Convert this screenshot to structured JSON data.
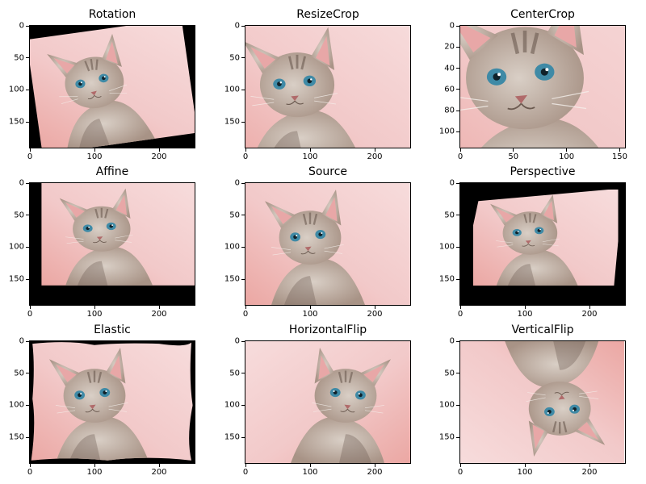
{
  "figure": {
    "description_type": "image-grid",
    "panels": [
      {
        "id": "rotation",
        "title": "Rotation",
        "img_w": 255,
        "img_h": 190,
        "xticks": [
          "0",
          "100",
          "200"
        ],
        "xtick_vals": [
          0,
          100,
          200
        ],
        "yticks": [
          "0",
          "50",
          "100",
          "150"
        ],
        "ytick_vals": [
          0,
          50,
          100,
          150
        ],
        "transform": "rotation"
      },
      {
        "id": "resizecrop",
        "title": "ResizeCrop",
        "img_w": 255,
        "img_h": 190,
        "xticks": [
          "0",
          "100",
          "200"
        ],
        "xtick_vals": [
          0,
          100,
          200
        ],
        "yticks": [
          "0",
          "50",
          "100",
          "150"
        ],
        "ytick_vals": [
          0,
          50,
          100,
          150
        ],
        "transform": "resizecrop"
      },
      {
        "id": "centercrop",
        "title": "CenterCrop",
        "img_w": 155,
        "img_h": 115,
        "xticks": [
          "0",
          "50",
          "100",
          "150"
        ],
        "xtick_vals": [
          0,
          50,
          100,
          150
        ],
        "yticks": [
          "0",
          "20",
          "40",
          "60",
          "80",
          "100"
        ],
        "ytick_vals": [
          0,
          20,
          40,
          60,
          80,
          100
        ],
        "transform": "centercrop"
      },
      {
        "id": "affine",
        "title": "Affine",
        "img_w": 255,
        "img_h": 190,
        "xticks": [
          "0",
          "100",
          "200"
        ],
        "xtick_vals": [
          0,
          100,
          200
        ],
        "yticks": [
          "0",
          "50",
          "100",
          "150"
        ],
        "ytick_vals": [
          0,
          50,
          100,
          150
        ],
        "transform": "affine"
      },
      {
        "id": "source",
        "title": "Source",
        "img_w": 255,
        "img_h": 190,
        "xticks": [
          "0",
          "100",
          "200"
        ],
        "xtick_vals": [
          0,
          100,
          200
        ],
        "yticks": [
          "0",
          "50",
          "100",
          "150"
        ],
        "ytick_vals": [
          0,
          50,
          100,
          150
        ],
        "transform": "source"
      },
      {
        "id": "perspective",
        "title": "Perspective",
        "img_w": 255,
        "img_h": 190,
        "xticks": [
          "0",
          "100",
          "200"
        ],
        "xtick_vals": [
          0,
          100,
          200
        ],
        "yticks": [
          "0",
          "50",
          "100",
          "150"
        ],
        "ytick_vals": [
          0,
          50,
          100,
          150
        ],
        "transform": "perspective"
      },
      {
        "id": "elastic",
        "title": "Elastic",
        "img_w": 255,
        "img_h": 190,
        "xticks": [
          "0",
          "100",
          "200"
        ],
        "xtick_vals": [
          0,
          100,
          200
        ],
        "yticks": [
          "0",
          "50",
          "100",
          "150"
        ],
        "ytick_vals": [
          0,
          50,
          100,
          150
        ],
        "transform": "elastic"
      },
      {
        "id": "horizontalflip",
        "title": "HorizontalFlip",
        "img_w": 255,
        "img_h": 190,
        "xticks": [
          "0",
          "100",
          "200"
        ],
        "xtick_vals": [
          0,
          100,
          200
        ],
        "yticks": [
          "0",
          "50",
          "100",
          "150"
        ],
        "ytick_vals": [
          0,
          50,
          100,
          150
        ],
        "transform": "hflip"
      },
      {
        "id": "verticalflip",
        "title": "VerticalFlip",
        "img_w": 255,
        "img_h": 190,
        "xticks": [
          "0",
          "100",
          "200"
        ],
        "xtick_vals": [
          0,
          100,
          200
        ],
        "yticks": [
          "0",
          "50",
          "100",
          "150"
        ],
        "ytick_vals": [
          0,
          50,
          100,
          150
        ],
        "transform": "vflip"
      }
    ]
  },
  "colors": {
    "background_pink": "#f2c9c9",
    "background_light": "#f7dcdc",
    "fur_light": "#d9cfc6",
    "fur_dark": "#6b5a50",
    "ear_inner": "#e8a7a7",
    "eye": "#3f8aa6",
    "nose": "#b06a6a",
    "fill_black": "#000000"
  }
}
